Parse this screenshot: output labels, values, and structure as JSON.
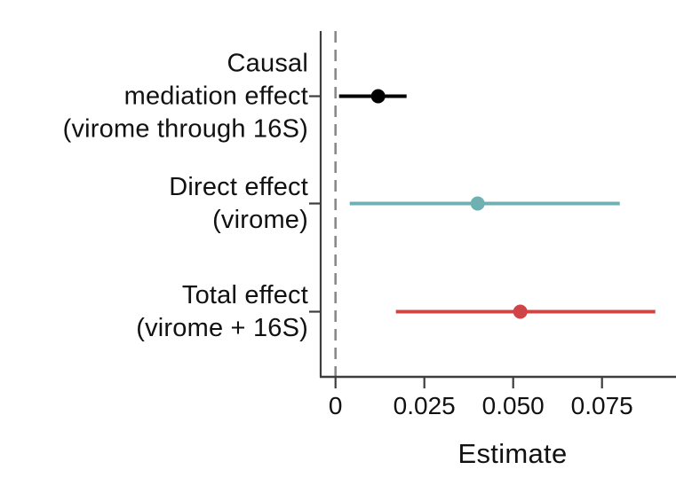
{
  "chart_data": {
    "type": "scatter",
    "subtype": "forest-pointrange",
    "xlabel": "Estimate",
    "x_ticks": [
      0,
      0.025,
      0.05,
      0.075
    ],
    "x_tick_labels": [
      "0",
      "0.025",
      "0.050",
      "0.075"
    ],
    "xlim": [
      -0.004,
      0.096
    ],
    "zero_line": 0,
    "grid": "off",
    "legend": "none",
    "series": [
      {
        "name": "Causal mediation effect (virome through 16S)",
        "label_lines": [
          "Causal",
          "mediation effect",
          "(virome through 16S)"
        ],
        "estimate": 0.012,
        "ci_low": 0.001,
        "ci_high": 0.02,
        "color": "#000000"
      },
      {
        "name": "Direct effect (virome)",
        "label_lines": [
          "Direct effect",
          "(virome)"
        ],
        "estimate": 0.04,
        "ci_low": 0.004,
        "ci_high": 0.08,
        "color": "#6fb1b3"
      },
      {
        "name": "Total effect (virome + 16S)",
        "label_lines": [
          "Total effect",
          "(virome + 16S)"
        ],
        "estimate": 0.052,
        "ci_low": 0.017,
        "ci_high": 0.09,
        "color": "#cf4446"
      }
    ],
    "colors": {
      "axis": "#3d3d3d",
      "zero_line": "#8a8a8a",
      "text": "#111111"
    }
  }
}
